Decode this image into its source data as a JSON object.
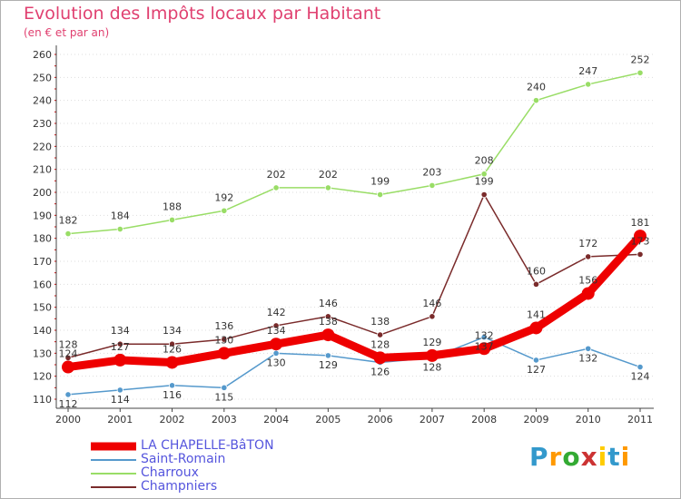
{
  "chart_data": {
    "type": "line",
    "title": "Evolution des Impôts locaux par Habitant",
    "subtitle": "(en € et par an)",
    "categories": [
      "2000",
      "2001",
      "2002",
      "2003",
      "2004",
      "2005",
      "2006",
      "2007",
      "2008",
      "2009",
      "2010",
      "2011"
    ],
    "y_ticks": [
      "110",
      "120",
      "130",
      "140",
      "150",
      "160",
      "170",
      "180",
      "190",
      "200",
      "210",
      "220",
      "230",
      "240",
      "250",
      "260"
    ],
    "ylim": [
      110,
      260
    ],
    "series": [
      {
        "name": "Champniers",
        "color": "#7a2b2b",
        "values": [
          128,
          134,
          134,
          136,
          142,
          146,
          138,
          146,
          199,
          160,
          172,
          173
        ],
        "labels": [
          "128",
          "134",
          "134",
          "136",
          "142",
          "146",
          "138",
          "146",
          "199",
          "160",
          "172",
          "173"
        ]
      },
      {
        "name": "Charroux",
        "color": "#99dd66",
        "values": [
          182,
          184,
          188,
          192,
          202,
          202,
          199,
          203,
          208,
          240,
          247,
          252
        ],
        "labels": [
          "182",
          "184",
          "188",
          "192",
          "202",
          "202",
          "199",
          "203",
          "208",
          "240",
          "247",
          "252"
        ]
      },
      {
        "name": "Saint-Romain",
        "color": "#5599cc",
        "values": [
          112,
          114,
          116,
          115,
          130,
          129,
          126,
          128,
          137,
          127,
          132,
          124
        ],
        "labels": [
          "112",
          "114",
          "116",
          "115",
          "130",
          "129",
          "126",
          "128",
          "137",
          "127",
          "132",
          "124"
        ]
      },
      {
        "name": "LA CHAPELLE-BâTON",
        "color": "#ee0000",
        "values": [
          124,
          127,
          126,
          130,
          134,
          138,
          128,
          129,
          132,
          141,
          156,
          181
        ],
        "labels": [
          "124",
          "127",
          "126",
          "130",
          "134",
          "138",
          "128",
          "129",
          "132",
          "141",
          "156",
          "181"
        ]
      }
    ]
  },
  "legend": [
    {
      "label": "LA CHAPELLE-BâTON",
      "color": "#ee0000"
    },
    {
      "label": "Saint-Romain",
      "color": "#5599cc"
    },
    {
      "label": "Charroux",
      "color": "#99dd66"
    },
    {
      "label": "Champniers",
      "color": "#7a2b2b"
    }
  ],
  "logo": {
    "letters": [
      "P",
      "r",
      "o",
      "x",
      "i",
      "t",
      "i"
    ],
    "colors": [
      "#3399cc",
      "#ff9900",
      "#33aa33",
      "#cc3333",
      "#ffcc00",
      "#3399cc",
      "#ff9900"
    ]
  }
}
